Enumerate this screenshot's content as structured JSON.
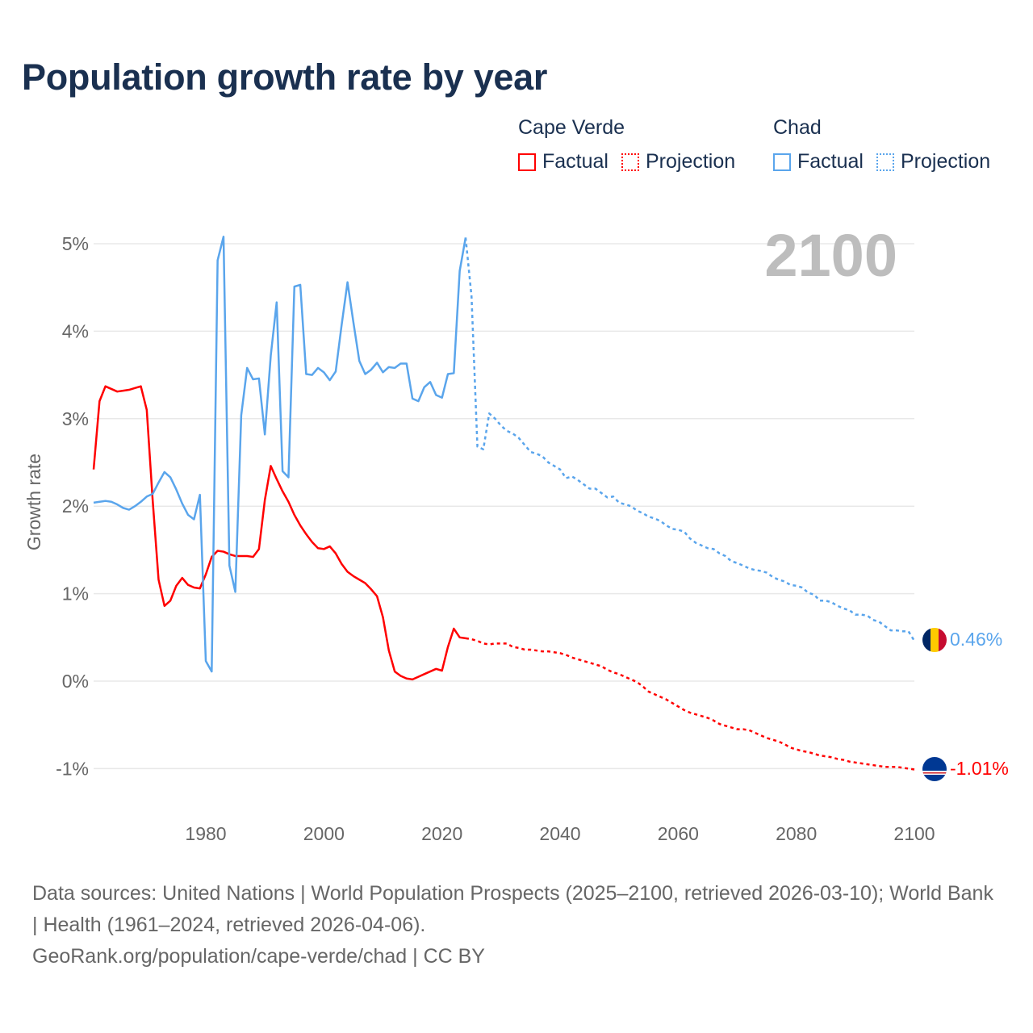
{
  "title": "Population growth rate by year",
  "legend": {
    "groups": [
      {
        "name": "Cape Verde",
        "factual": "Factual",
        "projection": "Projection",
        "color": "#ff0000"
      },
      {
        "name": "Chad",
        "factual": "Factual",
        "projection": "Projection",
        "color": "#5aa5ec"
      }
    ]
  },
  "current_year": "2100",
  "end_labels": {
    "chad": "0.46%",
    "cape_verde": "-1.01%"
  },
  "footer": {
    "sources": "Data sources: United Nations | World Population Prospects (2025–2100, retrieved 2026-03-10); World Bank | Health (1961–2024, retrieved 2026-04-06).",
    "credit": "GeoRank.org/population/cape-verde/chad | CC BY"
  },
  "chart_data": {
    "type": "line",
    "title": "Population growth rate by year",
    "xlabel": "",
    "ylabel": "Growth rate",
    "xlim": [
      1961,
      2100
    ],
    "ylim": [
      -1.5,
      5.2
    ],
    "xticks": [
      1980,
      2000,
      2020,
      2040,
      2060,
      2080,
      2100
    ],
    "xtick_labels": [
      "1980",
      "2000",
      "2020",
      "2040",
      "2060",
      "2080",
      "2100"
    ],
    "yticks": [
      -1,
      0,
      1,
      2,
      3,
      4,
      5
    ],
    "ytick_labels": [
      "-1%",
      "0%",
      "1%",
      "2%",
      "3%",
      "4%",
      "5%"
    ],
    "grid": true,
    "legend_position": "top-right",
    "series": [
      {
        "name": "Cape Verde Factual",
        "color": "#ff0000",
        "style": "solid",
        "x_start": 1961,
        "values": [
          2.42,
          3.2,
          3.37,
          3.34,
          3.31,
          3.32,
          3.33,
          3.35,
          3.37,
          3.1,
          2.07,
          1.16,
          0.86,
          0.92,
          1.09,
          1.18,
          1.1,
          1.07,
          1.06,
          1.22,
          1.42,
          1.49,
          1.48,
          1.45,
          1.43,
          1.43,
          1.43,
          1.42,
          1.51,
          2.07,
          2.46,
          2.31,
          2.17,
          2.05,
          1.9,
          1.78,
          1.68,
          1.59,
          1.52,
          1.51,
          1.54,
          1.46,
          1.34,
          1.25,
          1.2,
          1.16,
          1.12,
          1.05,
          0.97,
          0.73,
          0.35,
          0.11,
          0.06,
          0.03,
          0.02,
          0.05,
          0.08,
          0.11,
          0.14,
          0.12,
          0.39,
          0.6,
          0.5,
          0.49
        ]
      },
      {
        "name": "Cape Verde Projection",
        "color": "#ff0000",
        "style": "dotted",
        "x_start": 2025,
        "values": [
          0.48,
          0.46,
          0.43,
          0.42,
          0.43,
          0.43,
          0.43,
          0.39,
          0.38,
          0.36,
          0.36,
          0.35,
          0.34,
          0.34,
          0.33,
          0.32,
          0.3,
          0.27,
          0.25,
          0.23,
          0.21,
          0.19,
          0.17,
          0.13,
          0.1,
          0.08,
          0.05,
          0.02,
          -0.01,
          -0.06,
          -0.12,
          -0.15,
          -0.18,
          -0.21,
          -0.25,
          -0.29,
          -0.33,
          -0.36,
          -0.38,
          -0.4,
          -0.42,
          -0.45,
          -0.49,
          -0.51,
          -0.53,
          -0.55,
          -0.55,
          -0.56,
          -0.59,
          -0.62,
          -0.65,
          -0.67,
          -0.69,
          -0.72,
          -0.76,
          -0.78,
          -0.8,
          -0.81,
          -0.83,
          -0.85,
          -0.86,
          -0.87,
          -0.89,
          -0.9,
          -0.92,
          -0.93,
          -0.94,
          -0.95,
          -0.96,
          -0.97,
          -0.98,
          -0.98,
          -0.98,
          -0.99,
          -1.0,
          -1.01
        ]
      },
      {
        "name": "Chad Factual",
        "color": "#5aa5ec",
        "style": "solid",
        "x_start": 1961,
        "values": [
          2.04,
          2.05,
          2.06,
          2.05,
          2.02,
          1.98,
          1.96,
          2.0,
          2.05,
          2.11,
          2.14,
          2.27,
          2.39,
          2.33,
          2.19,
          2.03,
          1.9,
          1.85,
          2.13,
          0.23,
          0.11,
          4.81,
          5.08,
          1.32,
          1.02,
          3.04,
          3.58,
          3.45,
          3.46,
          2.82,
          3.72,
          4.33,
          2.4,
          2.33,
          4.51,
          4.53,
          3.51,
          3.5,
          3.58,
          3.53,
          3.44,
          3.54,
          4.07,
          4.56,
          4.1,
          3.66,
          3.51,
          3.56,
          3.64,
          3.53,
          3.59,
          3.58,
          3.63,
          3.63,
          3.23,
          3.2,
          3.36,
          3.42,
          3.27,
          3.24,
          3.51,
          3.52,
          4.69,
          5.07
        ]
      },
      {
        "name": "Chad Projection",
        "color": "#5aa5ec",
        "style": "dotted",
        "x_start": 2025,
        "values": [
          4.4,
          2.68,
          2.65,
          3.06,
          3.0,
          2.92,
          2.86,
          2.83,
          2.78,
          2.7,
          2.62,
          2.6,
          2.57,
          2.5,
          2.46,
          2.42,
          2.32,
          2.34,
          2.3,
          2.25,
          2.2,
          2.2,
          2.15,
          2.1,
          2.11,
          2.04,
          2.02,
          2.0,
          1.95,
          1.92,
          1.88,
          1.86,
          1.83,
          1.78,
          1.74,
          1.73,
          1.71,
          1.63,
          1.58,
          1.55,
          1.52,
          1.51,
          1.46,
          1.43,
          1.37,
          1.35,
          1.32,
          1.29,
          1.27,
          1.26,
          1.24,
          1.19,
          1.16,
          1.14,
          1.1,
          1.09,
          1.07,
          1.01,
          0.99,
          0.92,
          0.92,
          0.9,
          0.86,
          0.83,
          0.81,
          0.76,
          0.76,
          0.75,
          0.7,
          0.68,
          0.63,
          0.58,
          0.58,
          0.57,
          0.57,
          0.46
        ]
      }
    ]
  }
}
